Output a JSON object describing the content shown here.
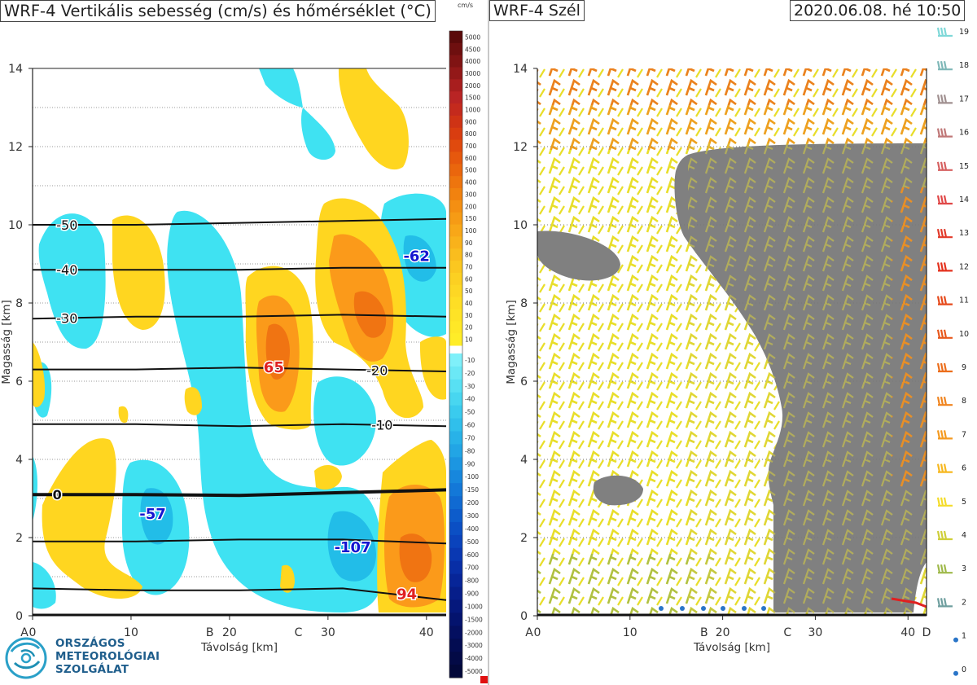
{
  "left_panel": {
    "title": "WRF-4 Vertikális sebesség (cm/s) és hőmérséklet (°C)",
    "colorbar_unit": "cm/s"
  },
  "right_panel": {
    "title": "WRF-4 Szél",
    "datetime": "2020.06.08. hé 10:50"
  },
  "logo": {
    "line1": "ORSZÁGOS",
    "line2": "METEOROLÓGIAI",
    "line3": "SZOLGÁLAT"
  },
  "colors": {
    "positive_w": "#ffd21e",
    "strong_positive_w": "#f08010",
    "negative_w": "#3ee0f0",
    "strong_negative_w": "#1ea0e6",
    "cloud": "#7f7f7f",
    "logo": "#1f5e8c"
  },
  "chart_data": [
    {
      "type": "heatmap",
      "title": "WRF-4 Vertikális sebesség (cm/s) és hőmérséklet (°C)",
      "xlabel": "Távolság [km]",
      "ylabel": "Magasság [km]",
      "xlim": [
        0,
        42
      ],
      "ylim": [
        0,
        14
      ],
      "x_ticks": [
        0,
        10,
        20,
        30,
        40
      ],
      "x_tick_labels": [
        "0",
        "10",
        "20",
        "30",
        "40"
      ],
      "y_ticks": [
        0,
        2,
        4,
        6,
        8,
        10,
        12,
        14
      ],
      "y_tick_labels": [
        "0",
        "2",
        "4",
        "6",
        "8",
        "10",
        "12",
        "14"
      ],
      "section_points": [
        {
          "name": "A",
          "x": 0
        },
        {
          "name": "B",
          "x": 18
        },
        {
          "name": "C",
          "x": 27
        }
      ],
      "grid": "horizontal dotted",
      "colorbar": {
        "positive": [
          "5000",
          "4500",
          "4000",
          "3000",
          "2000",
          "1500",
          "1000",
          "900",
          "800",
          "700",
          "600",
          "500",
          "400",
          "300",
          "200",
          "150",
          "100",
          "90",
          "80",
          "70",
          "60",
          "50",
          "40",
          "30",
          "20",
          "10"
        ],
        "negative": [
          "-10",
          "-20",
          "-30",
          "-40",
          "-50",
          "-60",
          "-70",
          "-80",
          "-90",
          "-100",
          "-150",
          "-200",
          "-300",
          "-400",
          "-500",
          "-600",
          "-700",
          "-800",
          "-900",
          "-1000",
          "-1500",
          "-2000",
          "-3000",
          "-4000",
          "-5000"
        ]
      },
      "isotherms": [
        {
          "label": "-50",
          "label_x": 3.5,
          "y": [
            10.0,
            10.0,
            10.05,
            10.1,
            10.15
          ]
        },
        {
          "label": "-40",
          "label_x": 3.5,
          "y": [
            8.85,
            8.85,
            8.85,
            8.9,
            8.9
          ]
        },
        {
          "label": "-30",
          "label_x": 3.5,
          "y": [
            7.6,
            7.65,
            7.65,
            7.7,
            7.65
          ]
        },
        {
          "label": "-20",
          "label_x": 35,
          "y": [
            6.3,
            6.3,
            6.35,
            6.3,
            6.25
          ]
        },
        {
          "label": "-10",
          "label_x": 35.5,
          "y": [
            4.9,
            4.9,
            4.85,
            4.9,
            4.85
          ]
        },
        {
          "label": "0",
          "label_x": 2.5,
          "y": [
            3.1,
            3.1,
            3.08,
            3.15,
            3.22
          ],
          "bold": true
        },
        {
          "label": "",
          "label_x": 0,
          "y": [
            1.9,
            1.9,
            1.95,
            1.95,
            1.85
          ]
        },
        {
          "label": "",
          "label_x": 0,
          "y": [
            0.7,
            0.65,
            0.65,
            0.7,
            0.4
          ]
        }
      ],
      "value_labels": [
        {
          "text": "-62",
          "x": 39,
          "y": 9.2,
          "color": "#1515d0"
        },
        {
          "text": "65",
          "x": 24.5,
          "y": 6.35,
          "color": "#e02020"
        },
        {
          "text": "-57",
          "x": 12.2,
          "y": 2.6,
          "color": "#1515d0"
        },
        {
          "text": "-107",
          "x": 32.5,
          "y": 1.75,
          "color": "#1515d0"
        },
        {
          "text": "94",
          "x": 38,
          "y": 0.55,
          "color": "#e02020"
        }
      ]
    },
    {
      "type": "scatter",
      "title": "WRF-4 Szél",
      "xlabel": "Távolság [km]",
      "ylabel": "Magasság [km]",
      "xlim": [
        0,
        42
      ],
      "ylim": [
        0,
        14
      ],
      "x_ticks": [
        0,
        10,
        20,
        30,
        40
      ],
      "x_tick_labels": [
        "0",
        "10",
        "20",
        "30",
        "40"
      ],
      "y_ticks": [
        0,
        2,
        4,
        6,
        8,
        10,
        12,
        14
      ],
      "y_tick_labels": [
        "0",
        "2",
        "4",
        "6",
        "8",
        "10",
        "12",
        "14"
      ],
      "section_points": [
        {
          "name": "A",
          "x": 0
        },
        {
          "name": "B",
          "x": 18
        },
        {
          "name": "C",
          "x": 27
        },
        {
          "name": "D",
          "x": 42
        }
      ],
      "wind_speed_legend": [
        "19",
        "18",
        "17",
        "16",
        "15",
        "14",
        "13",
        "12",
        "11",
        "10",
        "9",
        "8",
        "7",
        "6",
        "5",
        "4",
        "3",
        "2",
        "1",
        "0"
      ],
      "legend_position": "right",
      "grid": "horizontal dotted"
    }
  ]
}
